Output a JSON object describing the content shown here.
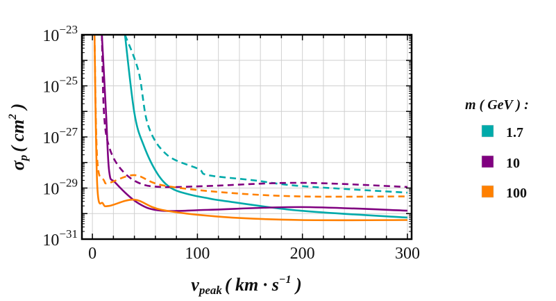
{
  "chart_data": {
    "type": "line",
    "xlabel": {
      "main": "v",
      "sub": "peak",
      "unit_open": "( km · s",
      "unit_sup": "−1",
      "unit_close": " )"
    },
    "ylabel": {
      "main": "σ",
      "sub": "p",
      "unit_open": "( cm",
      "unit_sup": "2",
      "unit_close": " )"
    },
    "xlim": [
      -10,
      304
    ],
    "ylim": [
      1e-31,
      1e-23
    ],
    "yscale": "log",
    "grid": true,
    "x_ticks": [
      {
        "v": 0,
        "label": "0"
      },
      {
        "v": 100,
        "label": "100"
      },
      {
        "v": 200,
        "label": "200"
      },
      {
        "v": 300,
        "label": "300"
      }
    ],
    "y_ticks": [
      {
        "exp": -23,
        "base": "10",
        "sup": "−23"
      },
      {
        "exp": -25,
        "base": "10",
        "sup": "−25"
      },
      {
        "exp": -27,
        "base": "10",
        "sup": "−27"
      },
      {
        "exp": -29,
        "base": "10",
        "sup": "−29"
      },
      {
        "exp": -31,
        "base": "10",
        "sup": "−31"
      }
    ],
    "legend": {
      "title": "m ( GeV ) :",
      "placement": "right",
      "items": [
        {
          "label": "1.7",
          "color": "#00AAAA"
        },
        {
          "label": "10",
          "color": "#800080"
        },
        {
          "label": "100",
          "color": "#FF8000"
        }
      ]
    },
    "series": [
      {
        "mass": "1.7",
        "style": "solid",
        "color": "#00AAAA",
        "points": [
          [
            31,
            1e-23
          ],
          [
            40,
            8.5e-27
          ],
          [
            49,
            4.5e-28
          ],
          [
            62,
            3.6e-29
          ],
          [
            75,
            1e-29
          ],
          [
            93,
            5.5e-30
          ],
          [
            110,
            4e-30
          ],
          [
            124,
            3.2e-30
          ],
          [
            198,
            1.3e-30
          ],
          [
            300,
            7e-31
          ]
        ]
      },
      {
        "mass": "1.7",
        "style": "dashed",
        "color": "#00AAAA",
        "points": [
          [
            31,
            1e-23
          ],
          [
            44,
            3.6e-25
          ],
          [
            53,
            2.9e-27
          ],
          [
            71,
            2e-28
          ],
          [
            101,
            5.6e-29
          ],
          [
            110,
            3.2e-29
          ],
          [
            154,
            2e-29
          ],
          [
            198,
            1.2e-29
          ],
          [
            300,
            6.6e-30
          ]
        ]
      },
      {
        "mass": "10",
        "style": "solid",
        "color": "#800080",
        "points": [
          [
            9,
            1e-23
          ],
          [
            13,
            8.5e-27
          ],
          [
            16,
            4.4e-29
          ],
          [
            22,
            1.6e-29
          ],
          [
            44,
            2.5e-30
          ],
          [
            66,
            1.3e-30
          ],
          [
            110,
            1.4e-30
          ],
          [
            198,
            1.8e-30
          ],
          [
            300,
            1.3e-30
          ]
        ]
      },
      {
        "mass": "10",
        "style": "dashed",
        "color": "#800080",
        "points": [
          [
            9,
            1e-23
          ],
          [
            11,
            8.5e-27
          ],
          [
            16,
            4e-28
          ],
          [
            27,
            5.6e-29
          ],
          [
            44,
            1.6e-29
          ],
          [
            66,
            1.1e-29
          ],
          [
            110,
            1.2e-29
          ],
          [
            198,
            1.6e-29
          ],
          [
            300,
            1.1e-29
          ]
        ]
      },
      {
        "mass": "100",
        "style": "solid",
        "color": "#FF8000",
        "points": [
          [
            2,
            1e-23
          ],
          [
            4.6,
            1.3e-29
          ],
          [
            10,
            2.5e-30
          ],
          [
            16,
            2e-30
          ],
          [
            40,
            3.5e-30
          ],
          [
            66,
            1.4e-30
          ],
          [
            124,
            7.4e-31
          ],
          [
            198,
            5.6e-31
          ],
          [
            300,
            5.6e-31
          ]
        ]
      },
      {
        "mass": "100",
        "style": "dashed",
        "color": "#FF8000",
        "points": [
          [
            2,
            1e-23
          ],
          [
            4.6,
            1.3e-28
          ],
          [
            11,
            2e-29
          ],
          [
            16,
            1.6e-29
          ],
          [
            40,
            3.2e-29
          ],
          [
            66,
            1.3e-29
          ],
          [
            124,
            6.8e-30
          ],
          [
            198,
            4.7e-30
          ],
          [
            300,
            4.7e-30
          ]
        ]
      }
    ]
  }
}
